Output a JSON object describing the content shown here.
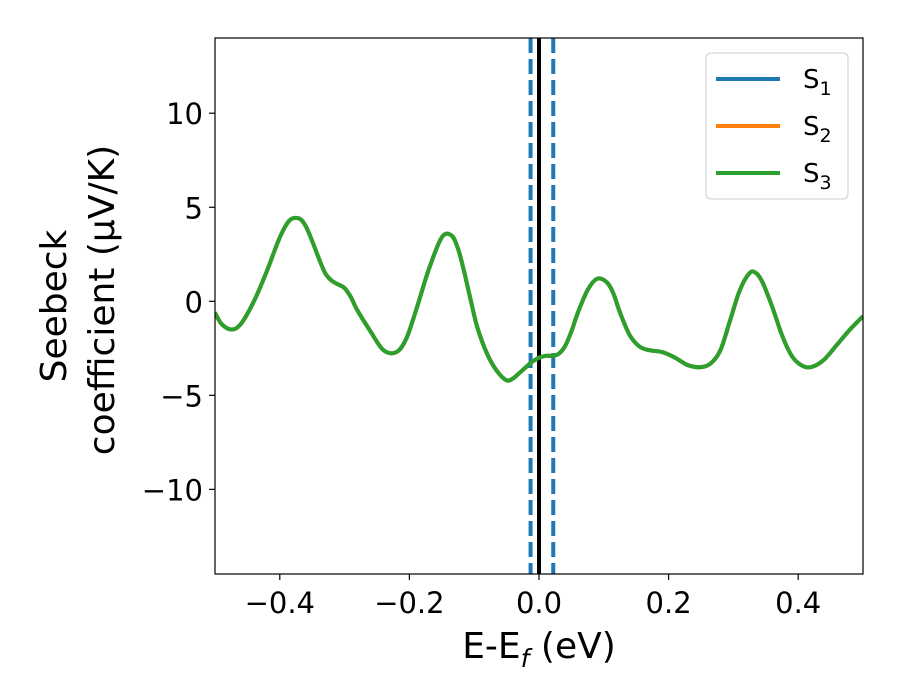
{
  "chart_data": {
    "type": "line",
    "title": "",
    "xlabel": {
      "main": "E-E",
      "sub": "f",
      "tail": " (eV)"
    },
    "ylabel": {
      "line1": "Seebeck",
      "line2": "coefficient  (μV/K)"
    },
    "xlim": [
      -0.5,
      0.5
    ],
    "ylim": [
      -14.5,
      14.0
    ],
    "x_ticks": [
      -0.4,
      -0.2,
      0.0,
      0.2,
      0.4
    ],
    "x_tick_labels": [
      "−0.4",
      "−0.2",
      "0.0",
      "0.2",
      "0.4"
    ],
    "y_ticks": [
      -10,
      -5,
      0,
      5,
      10
    ],
    "y_tick_labels": [
      "−10",
      "−5",
      "0",
      "5",
      "10"
    ],
    "grid": false,
    "legend_position": "top-right",
    "legend": [
      {
        "base": "S",
        "sub": "1",
        "color": "#1f77b4"
      },
      {
        "base": "S",
        "sub": "2",
        "color": "#ff7f0e"
      },
      {
        "base": "S",
        "sub": "3",
        "color": "#2ca02c"
      }
    ],
    "vertical_lines": [
      {
        "x": 0.0,
        "style": "solid",
        "color": "#000000"
      },
      {
        "x": -0.013,
        "style": "dashed",
        "color": "#1f77b4"
      },
      {
        "x": 0.022,
        "style": "dashed",
        "color": "#1f77b4"
      }
    ],
    "series": [
      {
        "color": "#1f77b4",
        "x": [
          -0.5,
          -0.49,
          -0.475,
          -0.46,
          -0.44,
          -0.42,
          -0.4,
          -0.385,
          -0.37,
          -0.36,
          -0.35,
          -0.34,
          -0.33,
          -0.32,
          -0.31,
          -0.3,
          -0.29,
          -0.28,
          -0.26,
          -0.24,
          -0.22,
          -0.205,
          -0.19,
          -0.17,
          -0.15,
          -0.135,
          -0.125,
          -0.115,
          -0.105,
          -0.095,
          -0.08,
          -0.065,
          -0.05,
          -0.04,
          -0.03,
          -0.02,
          -0.01,
          0.0,
          0.01,
          0.02,
          0.03,
          0.04,
          0.05,
          0.06,
          0.075,
          0.09,
          0.105,
          0.115,
          0.125,
          0.14,
          0.155,
          0.17,
          0.19,
          0.21,
          0.23,
          0.25,
          0.265,
          0.28,
          0.295,
          0.31,
          0.325,
          0.335,
          0.345,
          0.36,
          0.375,
          0.39,
          0.405,
          0.42,
          0.44,
          0.46,
          0.48,
          0.5
        ],
        "y": [
          -0.6,
          -1.2,
          -1.5,
          -1.2,
          0.0,
          1.6,
          3.4,
          4.3,
          4.4,
          4.0,
          3.2,
          2.3,
          1.5,
          1.1,
          0.9,
          0.7,
          0.2,
          -0.5,
          -1.6,
          -2.6,
          -2.7,
          -2.0,
          -0.5,
          1.7,
          3.4,
          3.5,
          2.8,
          1.5,
          0.0,
          -1.4,
          -2.8,
          -3.7,
          -4.2,
          -4.1,
          -3.8,
          -3.5,
          -3.2,
          -3.0,
          -2.9,
          -2.9,
          -2.8,
          -2.4,
          -1.6,
          -0.6,
          0.6,
          1.2,
          1.0,
          0.4,
          -0.6,
          -1.8,
          -2.4,
          -2.6,
          -2.7,
          -3.0,
          -3.4,
          -3.5,
          -3.3,
          -2.6,
          -1.0,
          0.6,
          1.5,
          1.5,
          1.0,
          -0.3,
          -1.8,
          -2.9,
          -3.4,
          -3.5,
          -3.1,
          -2.3,
          -1.5,
          -0.8
        ]
      },
      {
        "color": "#ff7f0e",
        "x": [
          -0.5,
          -0.49,
          -0.475,
          -0.46,
          -0.44,
          -0.42,
          -0.4,
          -0.385,
          -0.37,
          -0.36,
          -0.35,
          -0.34,
          -0.33,
          -0.32,
          -0.31,
          -0.3,
          -0.29,
          -0.28,
          -0.26,
          -0.24,
          -0.22,
          -0.205,
          -0.19,
          -0.17,
          -0.15,
          -0.135,
          -0.125,
          -0.115,
          -0.105,
          -0.095,
          -0.08,
          -0.065,
          -0.05,
          -0.04,
          -0.03,
          -0.02,
          -0.01,
          0.0,
          0.01,
          0.02,
          0.03,
          0.04,
          0.05,
          0.06,
          0.075,
          0.09,
          0.105,
          0.115,
          0.125,
          0.14,
          0.155,
          0.17,
          0.19,
          0.21,
          0.23,
          0.25,
          0.265,
          0.28,
          0.295,
          0.31,
          0.325,
          0.335,
          0.345,
          0.36,
          0.375,
          0.39,
          0.405,
          0.42,
          0.44,
          0.46,
          0.48,
          0.5
        ],
        "y": [
          -0.6,
          -1.2,
          -1.5,
          -1.2,
          0.0,
          1.6,
          3.4,
          4.3,
          4.4,
          4.0,
          3.2,
          2.3,
          1.5,
          1.1,
          0.9,
          0.7,
          0.2,
          -0.5,
          -1.6,
          -2.6,
          -2.7,
          -2.0,
          -0.5,
          1.7,
          3.4,
          3.5,
          2.8,
          1.5,
          0.0,
          -1.4,
          -2.8,
          -3.7,
          -4.2,
          -4.1,
          -3.8,
          -3.5,
          -3.2,
          -3.0,
          -2.9,
          -2.9,
          -2.8,
          -2.4,
          -1.6,
          -0.6,
          0.6,
          1.2,
          1.0,
          0.4,
          -0.6,
          -1.8,
          -2.4,
          -2.6,
          -2.7,
          -3.0,
          -3.4,
          -3.5,
          -3.3,
          -2.6,
          -1.0,
          0.6,
          1.5,
          1.5,
          1.0,
          -0.3,
          -1.8,
          -2.9,
          -3.4,
          -3.5,
          -3.1,
          -2.3,
          -1.5,
          -0.8
        ]
      },
      {
        "color": "#2ca02c",
        "x": [
          -0.5,
          -0.49,
          -0.475,
          -0.46,
          -0.44,
          -0.42,
          -0.4,
          -0.385,
          -0.37,
          -0.36,
          -0.35,
          -0.34,
          -0.33,
          -0.32,
          -0.31,
          -0.3,
          -0.29,
          -0.28,
          -0.26,
          -0.24,
          -0.22,
          -0.205,
          -0.19,
          -0.17,
          -0.15,
          -0.135,
          -0.125,
          -0.115,
          -0.105,
          -0.095,
          -0.08,
          -0.065,
          -0.05,
          -0.04,
          -0.03,
          -0.02,
          -0.01,
          0.0,
          0.01,
          0.02,
          0.03,
          0.04,
          0.05,
          0.06,
          0.075,
          0.09,
          0.105,
          0.115,
          0.125,
          0.14,
          0.155,
          0.17,
          0.19,
          0.21,
          0.23,
          0.25,
          0.265,
          0.28,
          0.295,
          0.31,
          0.325,
          0.335,
          0.345,
          0.36,
          0.375,
          0.39,
          0.405,
          0.42,
          0.44,
          0.46,
          0.48,
          0.5
        ],
        "y": [
          -0.6,
          -1.2,
          -1.5,
          -1.2,
          0.0,
          1.6,
          3.4,
          4.3,
          4.4,
          4.0,
          3.2,
          2.3,
          1.5,
          1.1,
          0.9,
          0.7,
          0.2,
          -0.5,
          -1.6,
          -2.6,
          -2.7,
          -2.0,
          -0.5,
          1.7,
          3.4,
          3.5,
          2.8,
          1.5,
          0.0,
          -1.4,
          -2.8,
          -3.7,
          -4.2,
          -4.1,
          -3.8,
          -3.5,
          -3.2,
          -3.0,
          -2.9,
          -2.9,
          -2.8,
          -2.4,
          -1.6,
          -0.6,
          0.6,
          1.2,
          1.0,
          0.4,
          -0.6,
          -1.8,
          -2.4,
          -2.6,
          -2.7,
          -3.0,
          -3.4,
          -3.5,
          -3.3,
          -2.6,
          -1.0,
          0.6,
          1.5,
          1.5,
          1.0,
          -0.3,
          -1.8,
          -2.9,
          -3.4,
          -3.5,
          -3.1,
          -2.3,
          -1.5,
          -0.8
        ]
      }
    ]
  }
}
